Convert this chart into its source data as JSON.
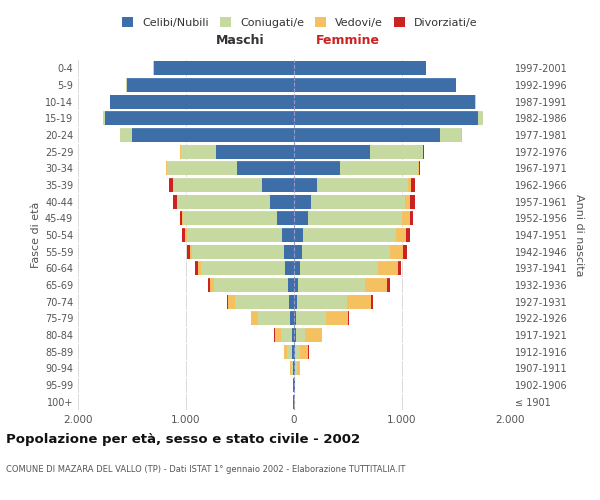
{
  "age_groups": [
    "100+",
    "95-99",
    "90-94",
    "85-89",
    "80-84",
    "75-79",
    "70-74",
    "65-69",
    "60-64",
    "55-59",
    "50-54",
    "45-49",
    "40-44",
    "35-39",
    "30-34",
    "25-29",
    "20-24",
    "15-19",
    "10-14",
    "5-9",
    "0-4"
  ],
  "birth_years": [
    "≤ 1901",
    "1902-1906",
    "1907-1911",
    "1912-1916",
    "1917-1921",
    "1922-1926",
    "1927-1931",
    "1932-1936",
    "1937-1941",
    "1942-1946",
    "1947-1951",
    "1952-1956",
    "1957-1961",
    "1962-1966",
    "1967-1971",
    "1972-1976",
    "1977-1981",
    "1982-1986",
    "1987-1991",
    "1992-1996",
    "1997-2001"
  ],
  "male_celibi": [
    5,
    5,
    10,
    15,
    20,
    35,
    50,
    60,
    80,
    90,
    110,
    160,
    220,
    300,
    530,
    720,
    1500,
    1750,
    1700,
    1550,
    1300
  ],
  "male_coniugati": [
    2,
    3,
    20,
    50,
    100,
    300,
    500,
    680,
    780,
    850,
    880,
    870,
    860,
    820,
    650,
    330,
    110,
    20,
    5,
    2,
    1
  ],
  "male_vedovi": [
    1,
    2,
    10,
    30,
    60,
    60,
    60,
    40,
    30,
    20,
    15,
    10,
    5,
    3,
    2,
    1,
    0,
    0,
    0,
    0,
    0
  ],
  "male_divorziati": [
    0,
    0,
    0,
    2,
    3,
    5,
    15,
    20,
    25,
    30,
    28,
    20,
    35,
    30,
    5,
    5,
    2,
    0,
    0,
    0,
    0
  ],
  "female_celibi": [
    3,
    5,
    10,
    12,
    15,
    20,
    30,
    40,
    60,
    70,
    80,
    130,
    160,
    210,
    430,
    700,
    1350,
    1700,
    1680,
    1500,
    1220
  ],
  "female_coniugati": [
    1,
    3,
    15,
    40,
    90,
    280,
    460,
    620,
    720,
    820,
    860,
    870,
    870,
    850,
    720,
    490,
    200,
    50,
    8,
    2,
    1
  ],
  "female_vedovi": [
    2,
    5,
    30,
    80,
    150,
    200,
    220,
    200,
    180,
    120,
    100,
    70,
    40,
    20,
    10,
    5,
    2,
    0,
    0,
    0,
    0
  ],
  "female_divorziati": [
    0,
    0,
    1,
    3,
    4,
    5,
    20,
    25,
    35,
    35,
    35,
    35,
    50,
    40,
    10,
    5,
    2,
    0,
    0,
    0,
    0
  ],
  "color_celibi": "#3d6ea8",
  "color_coniugati": "#c5d9a0",
  "color_vedovi": "#f5c060",
  "color_divorziati": "#cc2222",
  "title": "Popolazione per età, sesso e stato civile - 2002",
  "subtitle": "COMUNE DI MAZARA DEL VALLO (TP) - Dati ISTAT 1° gennaio 2002 - Elaborazione TUTTITALIA.IT",
  "xlabel_maschi": "Maschi",
  "xlabel_femmine": "Femmine",
  "ylabel_left": "Fasce di età",
  "ylabel_right": "Anni di nascita",
  "xlim": 2000,
  "bg_color": "#ffffff",
  "grid_color": "#cccccc",
  "legend_labels": [
    "Celibi/Nubili",
    "Coniugati/e",
    "Vedovi/e",
    "Divorziati/e"
  ]
}
